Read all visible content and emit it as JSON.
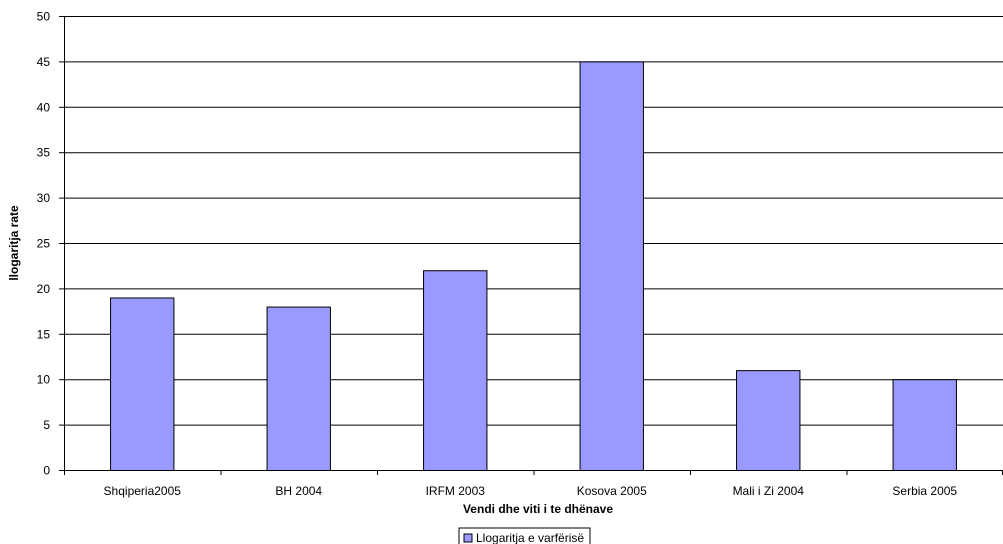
{
  "chart_data": {
    "type": "bar",
    "categories": [
      "Shqiperia2005",
      "BH 2004",
      "IRFM 2003",
      "Kosova 2005",
      "Mali i Zi 2004",
      "Serbia 2005"
    ],
    "series": [
      {
        "name": "Llogaritja e varfërisë",
        "values": [
          19,
          18,
          22,
          45,
          11,
          10
        ]
      }
    ],
    "title": "",
    "xlabel": "Vendi dhe viti i te dhënave",
    "ylabel": "llogaritja rate",
    "ylim": [
      0,
      50
    ],
    "yticks": [
      0,
      5,
      10,
      15,
      20,
      25,
      30,
      35,
      40,
      45,
      50
    ],
    "grid": true,
    "legend_position": "bottom",
    "colors": {
      "bar_fill": "#9999ff",
      "bar_stroke": "#000000",
      "grid": "#000000",
      "axis": "#000000"
    }
  }
}
